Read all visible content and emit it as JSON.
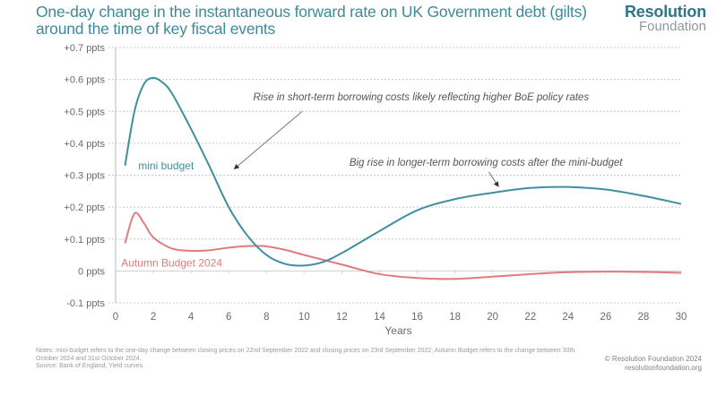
{
  "header": {
    "title": "One-day change in the instantaneous forward rate on UK Government debt (gilts) around the time of key fiscal events",
    "logo_top": "Resolution",
    "logo_bottom": "Foundation"
  },
  "footer": {
    "notes": "Notes: mini-budget refers to the one-day change between closing prices on 22nd September 2022 and closing prices on 23rd September 2022; Autumn Budget refers to the change between 30th October 2024 and 31st October 2024.",
    "source": "Source: Bank of England, Yield curves.",
    "copyright": "© Resolution Foundation 2024",
    "website": "resolutionfoundation.org"
  },
  "chart_data": {
    "type": "line",
    "title": "One-day change in the instantaneous forward rate on UK Government debt (gilts) around the time of key fiscal events",
    "xlabel": "Years",
    "ylabel": "",
    "xlim": [
      0,
      30
    ],
    "ylim": [
      -0.1,
      0.7
    ],
    "x_ticks": [
      0,
      2,
      4,
      6,
      8,
      10,
      12,
      14,
      16,
      18,
      20,
      22,
      24,
      26,
      28,
      30
    ],
    "x_tick_labels": [
      "0",
      "2",
      "4",
      "6",
      "8",
      "10",
      "12",
      "14",
      "16",
      "18",
      "20",
      "22",
      "24",
      "26",
      "28",
      "30"
    ],
    "y_ticks": [
      -0.1,
      0,
      0.1,
      0.2,
      0.3,
      0.4,
      0.5,
      0.6,
      0.7
    ],
    "y_tick_labels": [
      "-0.1 ppts",
      "0 ppts",
      "+0.1 ppts",
      "+0.2 ppts",
      "+0.3 ppts",
      "+0.4 ppts",
      "+0.5 ppts",
      "+0.6 ppts",
      "+0.7 ppts"
    ],
    "grid": "horizontal dotted",
    "series": [
      {
        "name": "mini budget",
        "color": "#3f8fa0",
        "label_anchor": {
          "x": 1.2,
          "y": 0.33
        },
        "x": [
          0.5,
          1,
          1.5,
          2,
          2.5,
          3,
          4,
          5,
          6,
          7,
          8,
          9,
          10,
          11,
          12,
          14,
          16,
          18,
          20,
          22,
          24,
          26,
          28,
          30
        ],
        "y": [
          0.33,
          0.5,
          0.585,
          0.605,
          0.59,
          0.555,
          0.445,
          0.325,
          0.2,
          0.11,
          0.05,
          0.022,
          0.017,
          0.028,
          0.056,
          0.125,
          0.19,
          0.225,
          0.245,
          0.26,
          0.263,
          0.255,
          0.235,
          0.21
        ]
      },
      {
        "name": "Autumn Budget 2024",
        "color": "#e07b7b",
        "label_anchor": {
          "x": 0.3,
          "y": 0.025
        },
        "x": [
          0.5,
          1,
          1.5,
          2,
          3,
          4,
          5,
          6,
          7,
          8,
          9,
          10,
          12,
          14,
          16,
          18,
          20,
          22,
          24,
          26,
          28,
          30
        ],
        "y": [
          0.087,
          0.18,
          0.15,
          0.105,
          0.07,
          0.063,
          0.065,
          0.073,
          0.078,
          0.077,
          0.066,
          0.05,
          0.02,
          -0.01,
          -0.022,
          -0.025,
          -0.018,
          -0.01,
          -0.004,
          -0.002,
          -0.003,
          -0.006
        ]
      }
    ],
    "annotations": [
      {
        "text": "Rise in short-term borrowing costs likely reflecting higher BoE policy rates",
        "text_at": {
          "x": 7.3,
          "y": 0.535
        },
        "arrow_from": {
          "x": 9.9,
          "y": 0.5
        },
        "arrow_to": {
          "x": 6.3,
          "y": 0.32
        }
      },
      {
        "text": "Big rise in longer-term borrowing costs after the mini-budget",
        "text_at": {
          "x": 12.4,
          "y": 0.33
        },
        "arrow_from": {
          "x": 19.8,
          "y": 0.31
        },
        "arrow_to": {
          "x": 20.3,
          "y": 0.265
        }
      }
    ]
  }
}
